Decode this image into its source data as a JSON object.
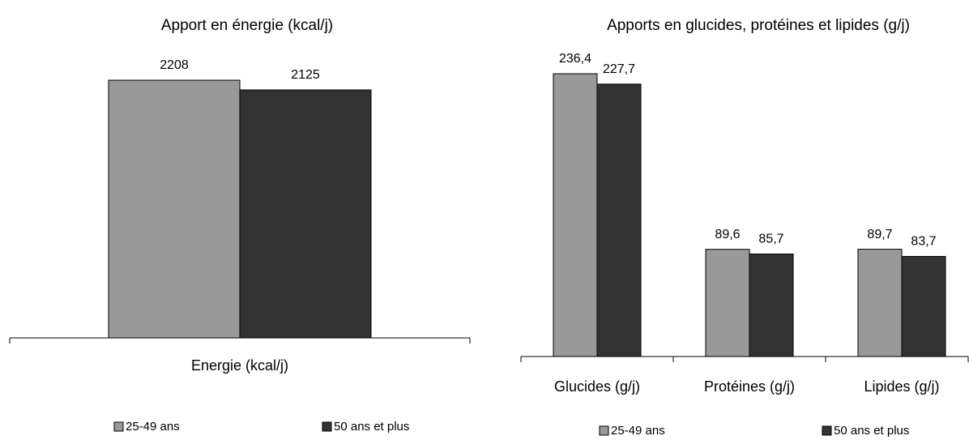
{
  "chart_data": [
    {
      "type": "bar",
      "title": "Apport en énergie (kcal/j)",
      "categories": [
        "Energie (kcal/j)"
      ],
      "series": [
        {
          "name": "25-49 ans",
          "color": "#999999",
          "values": [
            2208
          ]
        },
        {
          "name": "50 ans et plus",
          "color": "#333333",
          "values": [
            2125
          ]
        }
      ]
    },
    {
      "type": "bar",
      "title": "Apports en glucides, protéines et lipides (g/j)",
      "categories": [
        "Glucides (g/j)",
        "Protéines (g/j)",
        "Lipides (g/j)"
      ],
      "series": [
        {
          "name": "25-49 ans",
          "color": "#999999",
          "values": [
            236.4,
            89.6,
            89.7
          ],
          "value_labels": [
            "236,4",
            "89,6",
            "89,7"
          ]
        },
        {
          "name": "50 ans et plus",
          "color": "#333333",
          "values": [
            227.7,
            85.7,
            83.7
          ],
          "value_labels": [
            "227,7",
            "85,7",
            "83,7"
          ]
        }
      ]
    }
  ]
}
